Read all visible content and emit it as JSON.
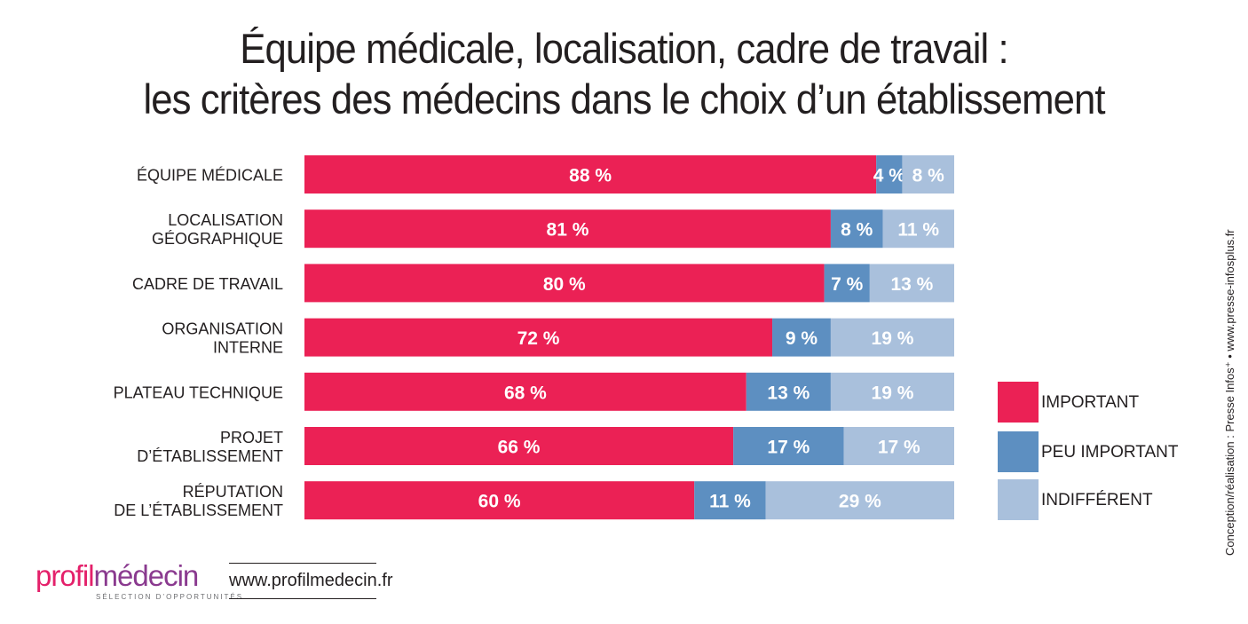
{
  "title": {
    "line1": "Équipe médicale, localisation, cadre de travail :",
    "line2": "les critères des médecins dans le choix d’un établissement"
  },
  "chart_data": {
    "type": "bar",
    "orientation": "horizontal",
    "stacked": true,
    "title": "Équipe médicale, localisation, cadre de travail : les critères des médecins dans le choix d’un établissement",
    "categories": [
      [
        "ÉQUIPE MÉDICALE"
      ],
      [
        "LOCALISATION",
        "GÉOGRAPHIQUE"
      ],
      [
        "CADRE DE TRAVAIL"
      ],
      [
        "ORGANISATION",
        "INTERNE"
      ],
      [
        "PLATEAU TECHNIQUE"
      ],
      [
        "PROJET",
        "D’ÉTABLISSEMENT"
      ],
      [
        "RÉPUTATION",
        "DE L’ÉTABLISSEMENT"
      ]
    ],
    "series": [
      {
        "name": "IMPORTANT",
        "color": "#eb2155",
        "values": [
          88,
          81,
          80,
          72,
          68,
          66,
          60
        ]
      },
      {
        "name": "PEU IMPORTANT",
        "color": "#5d8fc1",
        "values": [
          4,
          8,
          7,
          9,
          13,
          17,
          11
        ]
      },
      {
        "name": "INDIFFÉRENT",
        "color": "#a9c0dc",
        "values": [
          8,
          11,
          13,
          19,
          19,
          17,
          29
        ]
      }
    ],
    "value_suffix": " %",
    "xlim": [
      0,
      100
    ],
    "grid": false,
    "legend_position": "right"
  },
  "credit": "Conception/réalisation : Presse Infos⁺ • www.presse-infosplus.fr",
  "logo": {
    "part1": "profil",
    "part2": "médecin",
    "tagline": "SÉLECTION D’OPPORTUNITÉS"
  },
  "website": "www.profilmedecin.fr"
}
